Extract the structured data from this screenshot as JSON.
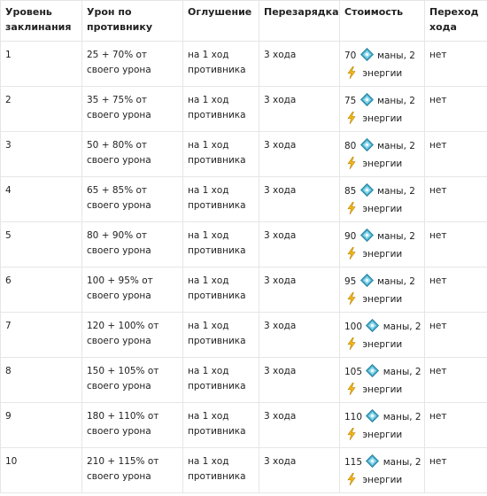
{
  "table": {
    "headers": [
      "Уровень заклинания",
      "Урон по противнику",
      "Оглушение",
      "Перезарядка",
      "Стоимость",
      "Переход хода"
    ],
    "icons": {
      "mana": "mana-crystal-icon",
      "energy": "lightning-energy-icon"
    },
    "rows": [
      {
        "level": "1",
        "damage": "25 + 70% от своего урона",
        "stun": "на 1 ход противника",
        "cooldown": "3 хода",
        "cost": {
          "mana_amount": "70",
          "mana_label": "маны, 2",
          "energy_label": "энергии"
        },
        "turn_pass": "нет"
      },
      {
        "level": "2",
        "damage": "35 + 75% от своего урона",
        "stun": "на 1 ход противника",
        "cooldown": "3 хода",
        "cost": {
          "mana_amount": "75",
          "mana_label": "маны, 2",
          "energy_label": "энергии"
        },
        "turn_pass": "нет"
      },
      {
        "level": "3",
        "damage": "50 + 80% от своего урона",
        "stun": "на 1 ход противника",
        "cooldown": "3 хода",
        "cost": {
          "mana_amount": "80",
          "mana_label": "маны, 2",
          "energy_label": "энергии"
        },
        "turn_pass": "нет"
      },
      {
        "level": "4",
        "damage": "65 + 85% от своего урона",
        "stun": "на 1 ход противника",
        "cooldown": "3 хода",
        "cost": {
          "mana_amount": "85",
          "mana_label": "маны, 2",
          "energy_label": "энергии"
        },
        "turn_pass": "нет"
      },
      {
        "level": "5",
        "damage": "80 + 90% от своего урона",
        "stun": "на 1 ход противника",
        "cooldown": "3 хода",
        "cost": {
          "mana_amount": "90",
          "mana_label": "маны, 2",
          "energy_label": "энергии"
        },
        "turn_pass": "нет"
      },
      {
        "level": "6",
        "damage": "100 + 95% от своего урона",
        "stun": "на 1 ход противника",
        "cooldown": "3 хода",
        "cost": {
          "mana_amount": "95",
          "mana_label": "маны, 2",
          "energy_label": "энергии"
        },
        "turn_pass": "нет"
      },
      {
        "level": "7",
        "damage": "120 + 100% от своего урона",
        "stun": "на 1 ход противника",
        "cooldown": "3 хода",
        "cost": {
          "mana_amount": "100",
          "mana_label": "маны, 2",
          "energy_label": "энергии"
        },
        "turn_pass": "нет"
      },
      {
        "level": "8",
        "damage": "150 + 105% от своего урона",
        "stun": "на 1 ход противника",
        "cooldown": "3 хода",
        "cost": {
          "mana_amount": "105",
          "mana_label": "маны, 2",
          "energy_label": "энергии"
        },
        "turn_pass": "нет"
      },
      {
        "level": "9",
        "damage": "180 + 110% от своего урона",
        "stun": "на 1 ход противника",
        "cooldown": "3 хода",
        "cost": {
          "mana_amount": "110",
          "mana_label": "маны, 2",
          "energy_label": "энергии"
        },
        "turn_pass": "нет"
      },
      {
        "level": "10",
        "damage": "210 + 115% от своего урона",
        "stun": "на 1 ход противника",
        "cooldown": "3 хода",
        "cost": {
          "mana_amount": "115",
          "mana_label": "маны, 2",
          "energy_label": "энергии"
        },
        "turn_pass": "нет"
      }
    ]
  }
}
